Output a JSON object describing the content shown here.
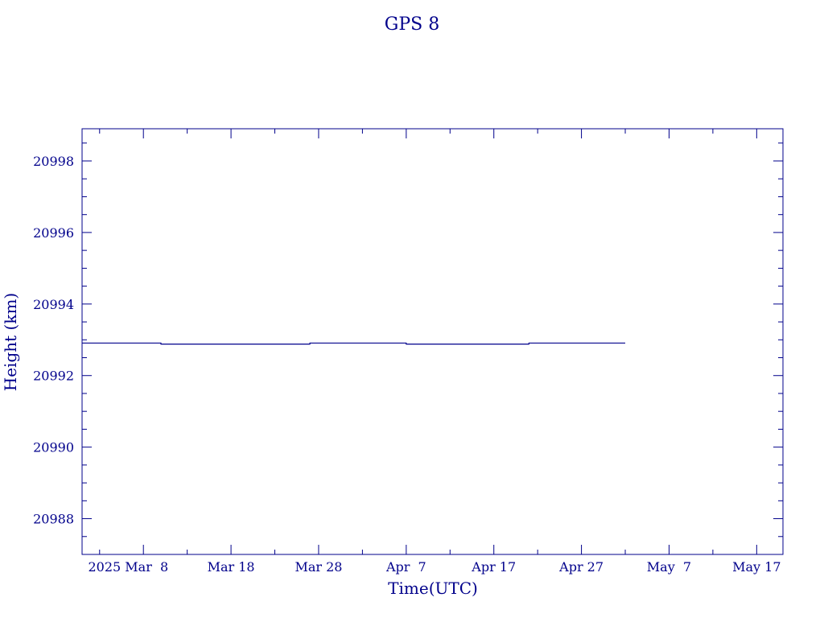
{
  "chart_data": {
    "type": "line",
    "title": "GPS 8",
    "xlabel": "Time(UTC)",
    "ylabel": "Height (km)",
    "ylim": [
      20987.0,
      20998.9
    ],
    "xlim": [
      "2025-03-01",
      "2025-05-20"
    ],
    "y_ticks": [
      20988,
      20990,
      20992,
      20994,
      20996,
      20998
    ],
    "y_tick_labels": [
      "20988",
      "20990",
      "20992",
      "20994",
      "20996",
      "20998"
    ],
    "x_ticks": [
      "2025-03-08",
      "2025-03-18",
      "2025-03-28",
      "2025-04-07",
      "2025-04-17",
      "2025-04-27",
      "2025-05-07",
      "2025-05-17"
    ],
    "x_tick_labels": [
      "2025 Mar  8",
      "Mar 18",
      "Mar 28",
      "Apr  7",
      "Apr 17",
      "Apr 27",
      "May  7",
      "May 17"
    ],
    "grid": false,
    "color": "#00008b",
    "series": [
      {
        "x": [
          "2025-03-01",
          "2025-03-10",
          "2025-03-10",
          "2025-03-27",
          "2025-03-27",
          "2025-04-07",
          "2025-04-07",
          "2025-04-21",
          "2025-04-21",
          "2025-05-02"
        ],
        "y": [
          20992.91,
          20992.91,
          20992.88,
          20992.88,
          20992.91,
          20992.91,
          20992.88,
          20992.88,
          20992.91,
          20992.91
        ]
      }
    ]
  }
}
